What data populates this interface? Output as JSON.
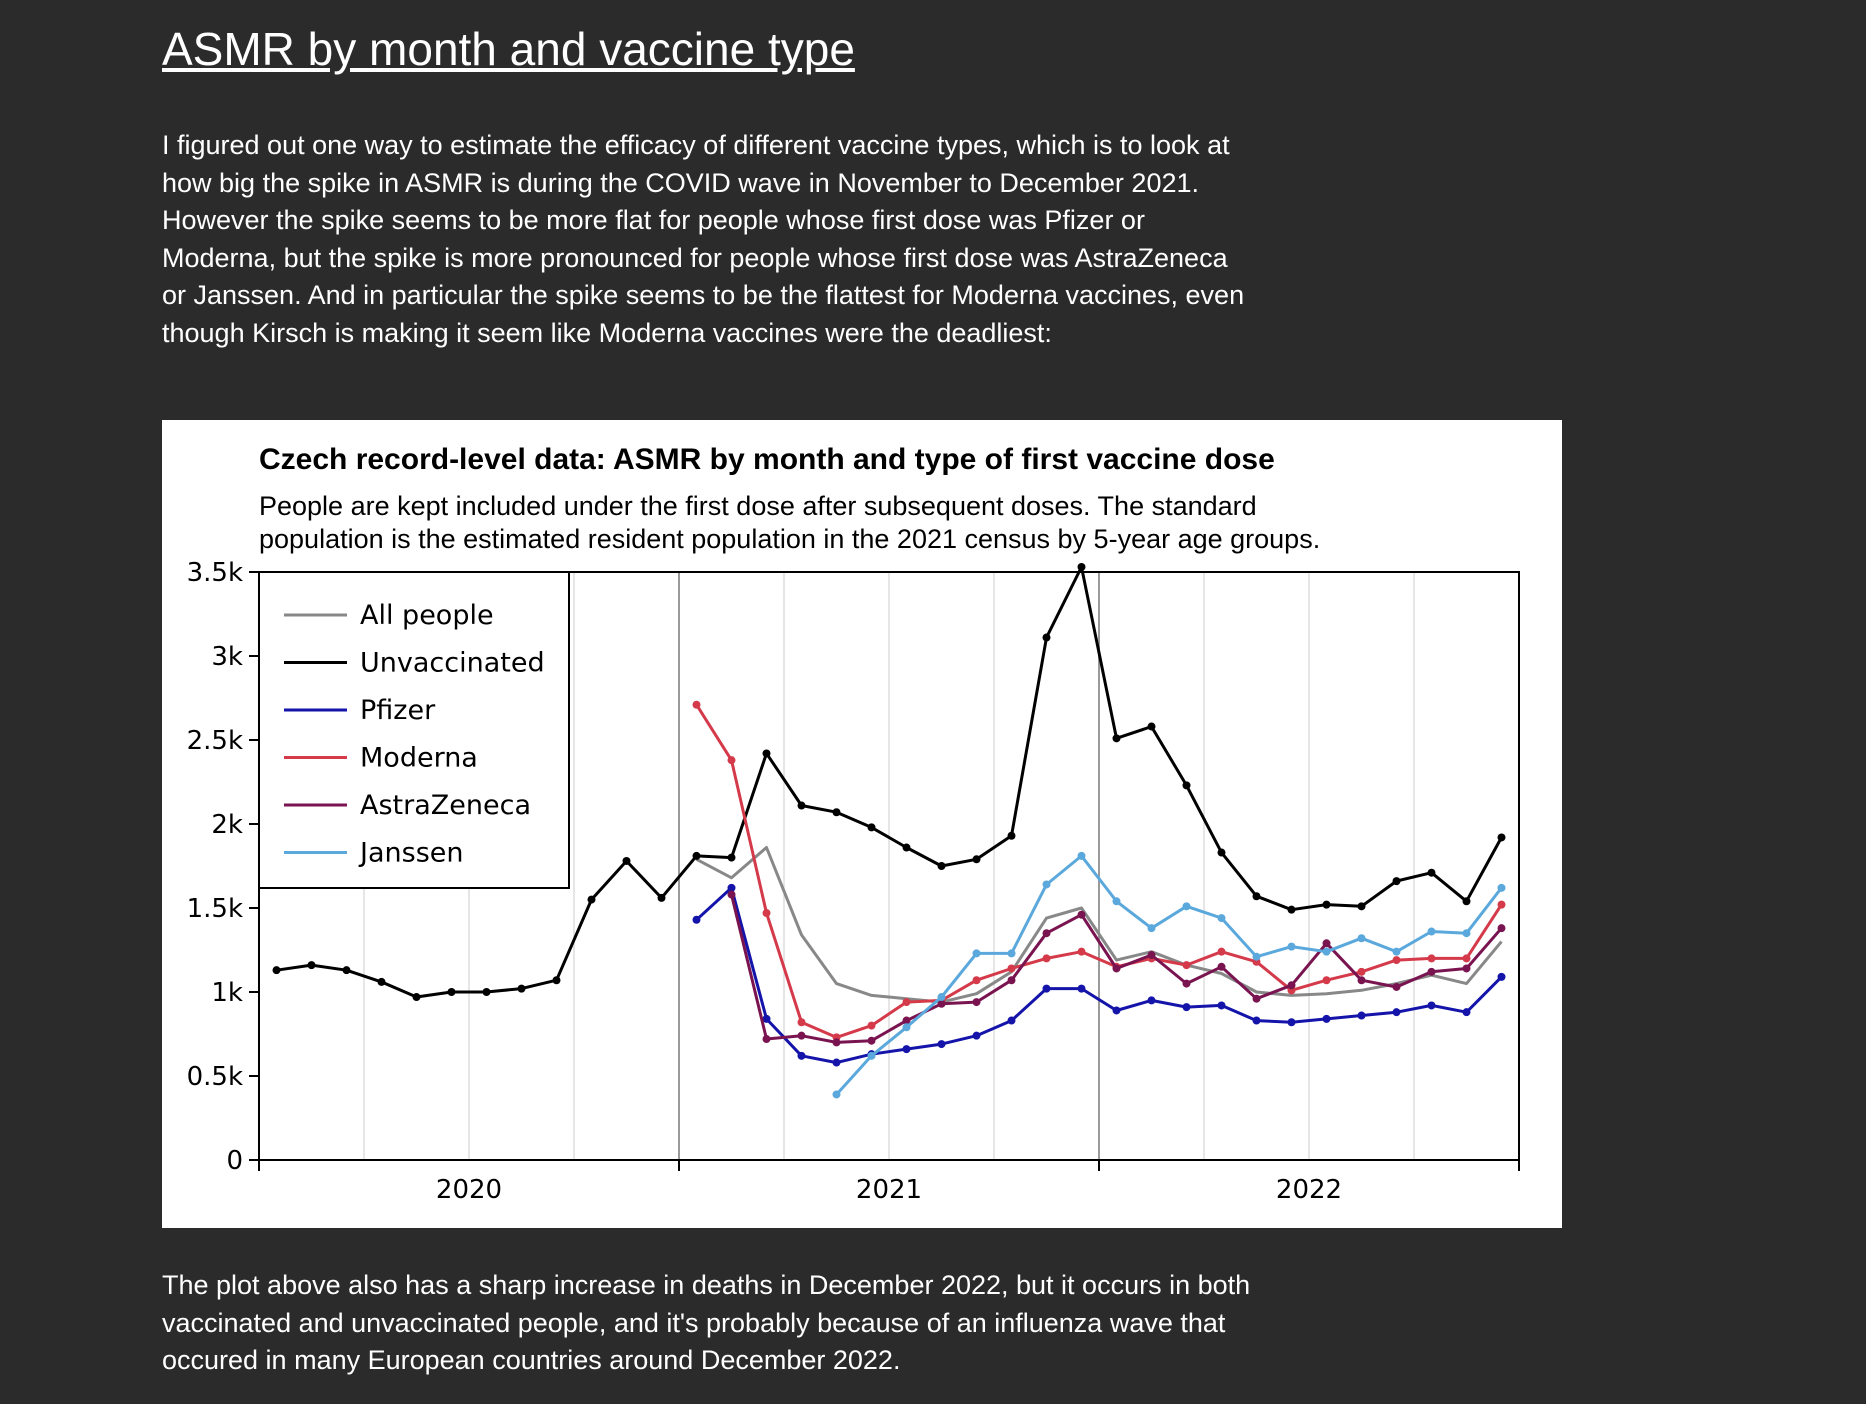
{
  "page": {
    "heading": "ASMR by month and vaccine type",
    "intro": "I figured out one way to estimate the efficacy of different vaccine types, which is to look at how big the spike in ASMR is during the COVID wave in November to December 2021. However the spike seems to be more flat for people whose first dose was Pfizer or Moderna, but the spike is more pronounced for people whose first dose was AstraZeneca or Janssen. And in particular the spike seems to be the flattest for Moderna vaccines, even though Kirsch is making it seem like Moderna vaccines were the deadliest:",
    "outro": "The plot above also has a sharp increase in deaths in December 2022, but it occurs in both vaccinated and unvaccinated people, and it's probably because of an influenza wave that occured in many European countries around December 2022."
  },
  "chart_data": {
    "type": "line",
    "title": "Czech record-level data: ASMR by month and type of first vaccine dose",
    "subtitle_lines": [
      "People are kept included under the first dose after subsequent doses. The standard",
      "population is the estimated resident population in the 2021 census by 5-year age groups."
    ],
    "x_month_range": [
      0,
      36
    ],
    "x_note": "x values are month indices: 0 = Jan 2020, 12 = Jan 2021, 24 = Jan 2022, 35 = Dec 2022",
    "x_tick_labels": [
      {
        "x": 6,
        "label": "2020"
      },
      {
        "x": 18,
        "label": "2021"
      },
      {
        "x": 30,
        "label": "2022"
      }
    ],
    "year_boundaries": [
      12,
      24
    ],
    "ylim": [
      0,
      3500
    ],
    "y_ticks": [
      {
        "value": 0,
        "label": "0"
      },
      {
        "value": 500,
        "label": "0.5k"
      },
      {
        "value": 1000,
        "label": "1k"
      },
      {
        "value": 1500,
        "label": "1.5k"
      },
      {
        "value": 2000,
        "label": "2k"
      },
      {
        "value": 2500,
        "label": "2.5k"
      },
      {
        "value": 3000,
        "label": "3k"
      },
      {
        "value": 3500,
        "label": "3.5k"
      }
    ],
    "legend_position": "top-left",
    "series": [
      {
        "name": "All people",
        "color": "#888888",
        "markers": false,
        "start": 12,
        "values": [
          1790,
          1680,
          1860,
          1340,
          1050,
          980,
          960,
          940,
          990,
          1120,
          1440,
          1500,
          1190,
          1240,
          1160,
          1110,
          1000,
          980,
          990,
          1010,
          1050,
          1100,
          1050,
          1300
        ]
      },
      {
        "name": "Unvaccinated",
        "color": "#000000",
        "markers": true,
        "start": 0,
        "values": [
          1130,
          1160,
          1130,
          1060,
          970,
          1000,
          1000,
          1020,
          1070,
          1550,
          1780,
          1560,
          1810,
          1800,
          2420,
          2110,
          2070,
          1980,
          1860,
          1750,
          1790,
          1930,
          3110,
          3530,
          2510,
          2580,
          2230,
          1830,
          1570,
          1490,
          1520,
          1510,
          1660,
          1710,
          1540,
          1920
        ]
      },
      {
        "name": "Pfizer",
        "color": "#1414aa",
        "markers": true,
        "start": 12,
        "values": [
          1430,
          1620,
          840,
          620,
          580,
          630,
          660,
          690,
          740,
          830,
          1020,
          1020,
          890,
          950,
          910,
          920,
          830,
          820,
          840,
          860,
          880,
          920,
          880,
          1090
        ]
      },
      {
        "name": "Moderna",
        "color": "#d43a4a",
        "markers": true,
        "start": 12,
        "values": [
          2710,
          2380,
          1470,
          820,
          730,
          800,
          940,
          950,
          1070,
          1140,
          1200,
          1240,
          1150,
          1200,
          1160,
          1240,
          1180,
          1010,
          1070,
          1120,
          1190,
          1200,
          1200,
          1520
        ]
      },
      {
        "name": "AstraZeneca",
        "color": "#7a1450",
        "markers": true,
        "start": 13,
        "values": [
          1580,
          720,
          740,
          700,
          710,
          830,
          930,
          940,
          1070,
          1350,
          1460,
          1140,
          1220,
          1050,
          1150,
          960,
          1040,
          1290,
          1070,
          1030,
          1120,
          1140,
          1380
        ]
      },
      {
        "name": "Janssen",
        "color": "#5aa8dc",
        "markers": true,
        "start": 16,
        "values": [
          390,
          620,
          790,
          970,
          1230,
          1230,
          1640,
          1810,
          1540,
          1380,
          1510,
          1440,
          1210,
          1270,
          1240,
          1320,
          1240,
          1360,
          1350,
          1620
        ]
      }
    ]
  }
}
